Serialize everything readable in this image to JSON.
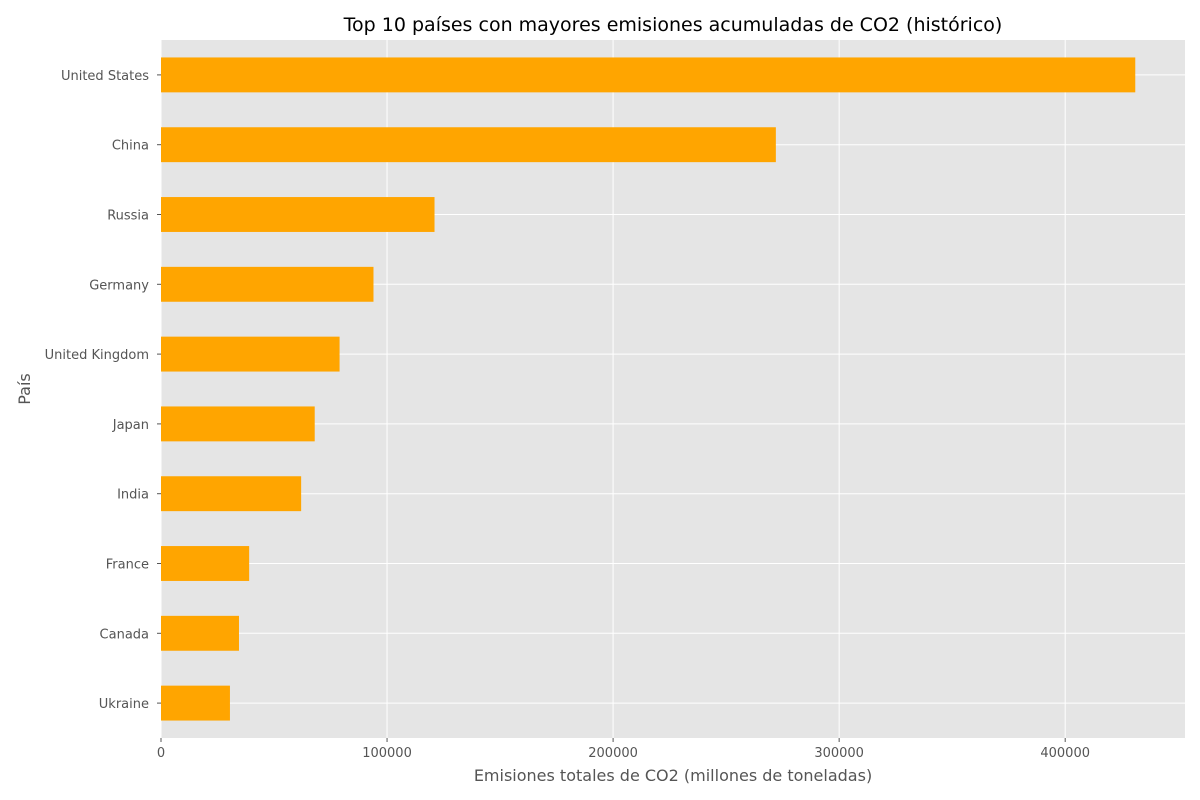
{
  "chart_data": {
    "type": "bar",
    "orientation": "horizontal",
    "title": "Top 10 países con mayores emisiones acumuladas de CO2 (histórico)",
    "xlabel": "Emisiones totales de CO2 (millones de toneladas)",
    "ylabel": "País",
    "categories": [
      "United States",
      "China",
      "Russia",
      "Germany",
      "United Kingdom",
      "Japan",
      "India",
      "France",
      "Canada",
      "Ukraine"
    ],
    "values": [
      431000,
      272000,
      121000,
      94000,
      79000,
      68000,
      62000,
      39000,
      34500,
      30500
    ],
    "xlim": [
      0,
      453000
    ],
    "xticks": [
      0,
      100000,
      200000,
      300000,
      400000
    ],
    "xtick_labels": [
      "0",
      "100000",
      "200000",
      "300000",
      "400000"
    ],
    "grid": true,
    "colors": {
      "bar": "#ffa500",
      "plot_background": "#e5e5e5",
      "grid": "#ffffff"
    }
  }
}
